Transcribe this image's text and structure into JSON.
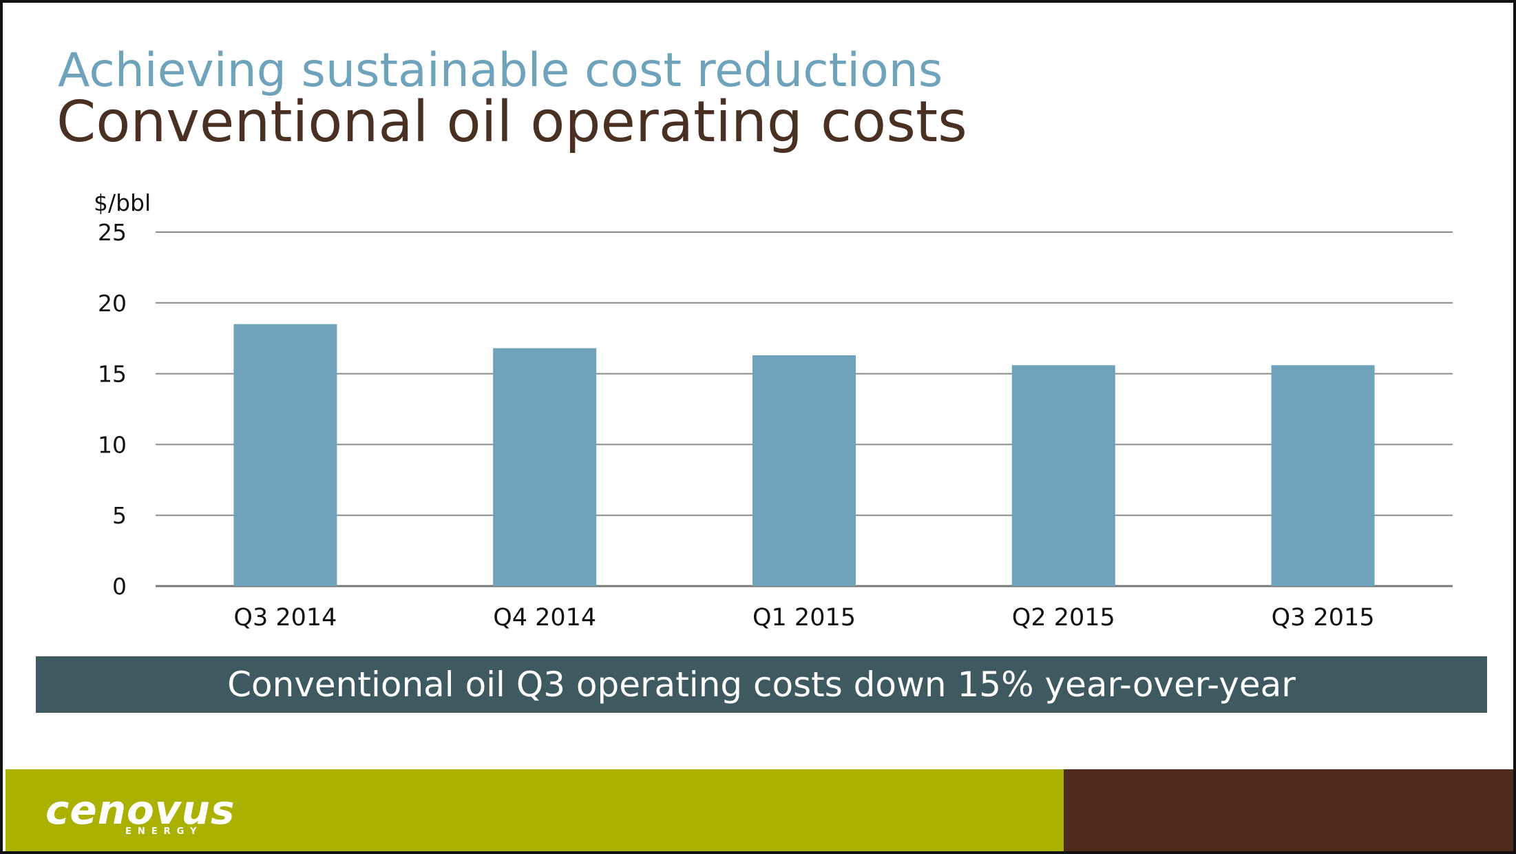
{
  "slide": {
    "kicker": "Achieving sustainable cost reductions",
    "headline": "Conventional oil operating costs",
    "banner": "Conventional oil Q3 operating costs down 15% year-over-year",
    "logo": {
      "word": "cenovus",
      "sub": "ENERGY"
    }
  },
  "colors": {
    "kicker": "#6ea3bb",
    "headline": "#4a2f23",
    "bar": "#6ea3bb",
    "banner": "#3e5960",
    "footer_green": "#aab101",
    "footer_brown": "#4f2b1c"
  },
  "chart_data": {
    "type": "bar",
    "title": "",
    "xlabel": "",
    "ylabel": "$/bbl",
    "categories": [
      "Q3 2014",
      "Q4 2014",
      "Q1 2015",
      "Q2 2015",
      "Q3 2015"
    ],
    "values": [
      18.5,
      16.8,
      16.3,
      15.6,
      15.6
    ],
    "ylim": [
      0,
      25
    ],
    "yticks": [
      0,
      5,
      10,
      15,
      20,
      25
    ],
    "grid": true,
    "legend": "none"
  }
}
